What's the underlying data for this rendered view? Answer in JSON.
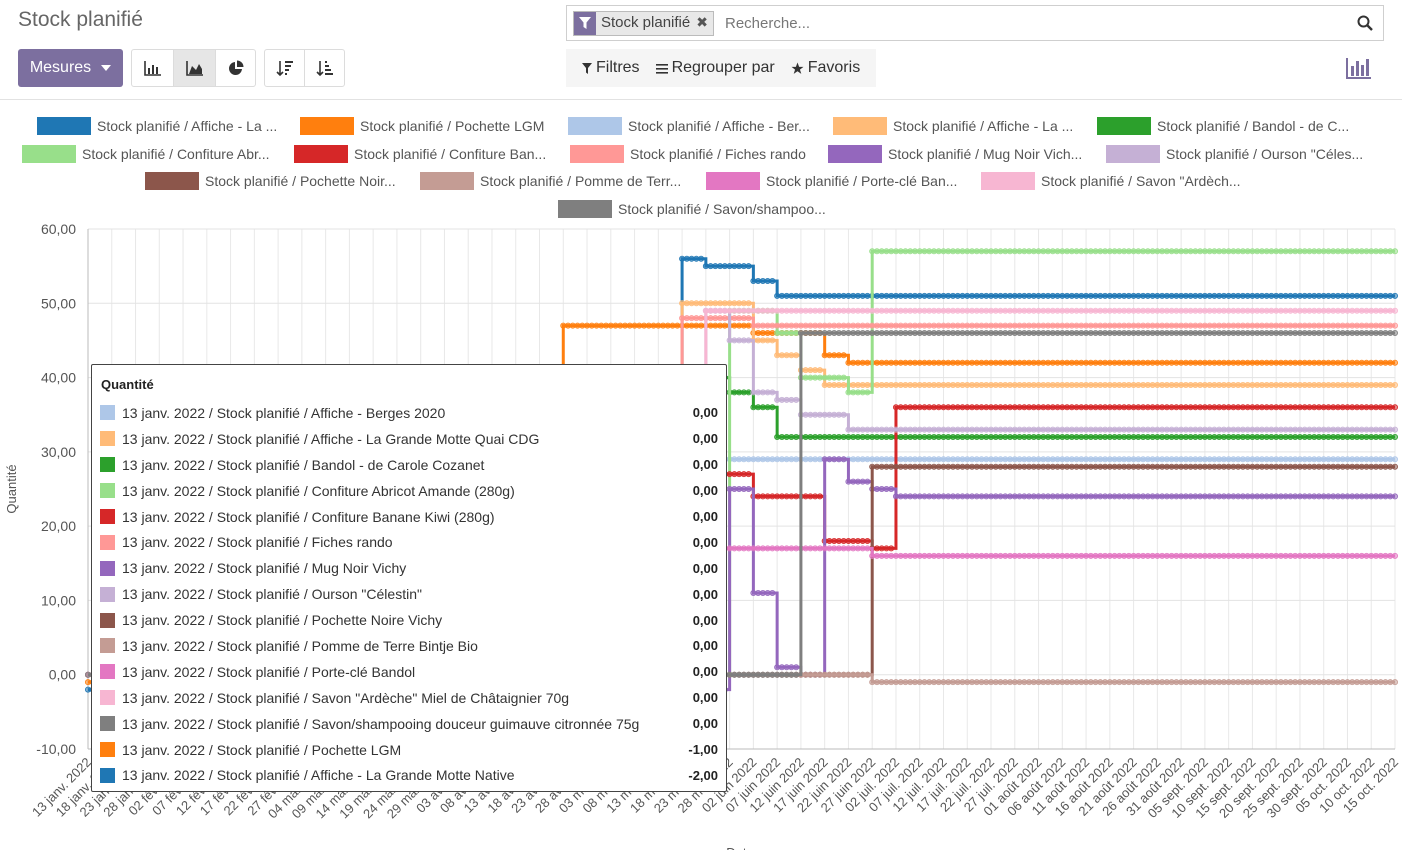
{
  "header": {
    "title": "Stock planifié",
    "measures_label": "Mesures"
  },
  "search": {
    "facet_label": "Stock planifié",
    "placeholder": "Recherche..."
  },
  "options": {
    "filters": "Filtres",
    "groupby": "Regrouper par",
    "favorites": "Favoris"
  },
  "colors": {
    "accent": "#7c6f9f"
  },
  "legend": [
    {
      "label": "Stock planifié / Affiche - La ...",
      "color": "#1f77b4"
    },
    {
      "label": "Stock planifié / Pochette LGM",
      "color": "#ff7f0e"
    },
    {
      "label": "Stock planifié / Affiche - Ber...",
      "color": "#aec7e8"
    },
    {
      "label": "Stock planifié / Affiche - La ...",
      "color": "#ffbb78"
    },
    {
      "label": "Stock planifié / Bandol - de C...",
      "color": "#2ca02c"
    },
    {
      "label": "Stock planifié / Confiture Abr...",
      "color": "#98df8a"
    },
    {
      "label": "Stock planifié / Confiture Ban...",
      "color": "#d62728"
    },
    {
      "label": "Stock planifié / Fiches rando",
      "color": "#ff9896"
    },
    {
      "label": "Stock planifié / Mug Noir Vich...",
      "color": "#9467bd"
    },
    {
      "label": "Stock planifié / Ourson \"Céles...",
      "color": "#c5b0d5"
    },
    {
      "label": "Stock planifié / Pochette Noir...",
      "color": "#8c564b"
    },
    {
      "label": "Stock planifié / Pomme de Terr...",
      "color": "#c49c94"
    },
    {
      "label": "Stock planifié / Porte-clé Ban...",
      "color": "#e377c2"
    },
    {
      "label": "Stock planifié / Savon \"Ardèch...",
      "color": "#f7b6d2"
    },
    {
      "label": "Stock planifié / Savon/shampoo...",
      "color": "#7f7f7f"
    }
  ],
  "tooltip": {
    "title": "Quantité",
    "rows": [
      {
        "label": "13 janv. 2022 / Stock planifié / Affiche - Berges 2020",
        "value": "0,00",
        "color": "#aec7e8"
      },
      {
        "label": "13 janv. 2022 / Stock planifié / Affiche - La Grande Motte Quai CDG",
        "value": "0,00",
        "color": "#ffbb78"
      },
      {
        "label": "13 janv. 2022 / Stock planifié / Bandol - de Carole Cozanet",
        "value": "0,00",
        "color": "#2ca02c"
      },
      {
        "label": "13 janv. 2022 / Stock planifié / Confiture Abricot Amande (280g)",
        "value": "0,00",
        "color": "#98df8a"
      },
      {
        "label": "13 janv. 2022 / Stock planifié / Confiture Banane Kiwi (280g)",
        "value": "0,00",
        "color": "#d62728"
      },
      {
        "label": "13 janv. 2022 / Stock planifié / Fiches rando",
        "value": "0,00",
        "color": "#ff9896"
      },
      {
        "label": "13 janv. 2022 / Stock planifié / Mug Noir Vichy",
        "value": "0,00",
        "color": "#9467bd"
      },
      {
        "label": "13 janv. 2022 / Stock planifié / Ourson \"Célestin\"",
        "value": "0,00",
        "color": "#c5b0d5"
      },
      {
        "label": "13 janv. 2022 / Stock planifié / Pochette Noire Vichy",
        "value": "0,00",
        "color": "#8c564b"
      },
      {
        "label": "13 janv. 2022 / Stock planifié / Pomme de Terre Bintje Bio",
        "value": "0,00",
        "color": "#c49c94"
      },
      {
        "label": "13 janv. 2022 / Stock planifié / Porte-clé Bandol",
        "value": "0,00",
        "color": "#e377c2"
      },
      {
        "label": "13 janv. 2022 / Stock planifié / Savon \"Ardèche\" Miel de Châtaignier 70g",
        "value": "0,00",
        "color": "#f7b6d2"
      },
      {
        "label": "13 janv. 2022 / Stock planifié / Savon/shampooing douceur guimauve citronnée 75g",
        "value": "0,00",
        "color": "#7f7f7f"
      },
      {
        "label": "13 janv. 2022 / Stock planifié / Pochette LGM",
        "value": "-1,00",
        "color": "#ff7f0e"
      },
      {
        "label": "13 janv. 2022 / Stock planifié / Affiche - La Grande Motte Native",
        "value": "-2,00",
        "color": "#1f77b4"
      }
    ]
  },
  "chart_data": {
    "type": "line",
    "ylabel": "Quantité",
    "xlabel": "Date",
    "ylim": [
      -10,
      60
    ],
    "yticks": [
      "60,00",
      "50,00",
      "40,00",
      "30,00",
      "20,00",
      "10,00",
      "0,00",
      "-10,00"
    ],
    "x": [
      "13 janv. 2022",
      "18 janv. 2022",
      "23 janv. 2022",
      "28 janv. 2022",
      "02 févr. 2022",
      "07 févr. 2022",
      "12 févr. 2022",
      "17 févr. 2022",
      "22 févr. 2022",
      "27 févr. 2022",
      "04 mars 2022",
      "09 mars 2022",
      "14 mars 2022",
      "19 mars 2022",
      "24 mars 2022",
      "29 mars 2022",
      "03 avr. 2022",
      "08 avr. 2022",
      "13 avr. 2022",
      "18 avr. 2022",
      "23 avr. 2022",
      "28 avr. 2022",
      "03 mai 2022",
      "08 mai 2022",
      "13 mai 2022",
      "18 mai 2022",
      "23 mai 2022",
      "28 mai 2022",
      "02 juin 2022",
      "07 juin 2022",
      "12 juin 2022",
      "17 juin 2022",
      "22 juin 2022",
      "27 juin 2022",
      "02 juil. 2022",
      "07 juil. 2022",
      "12 juil. 2022",
      "17 juil. 2022",
      "22 juil. 2022",
      "27 juil. 2022",
      "01 août 2022",
      "06 août 2022",
      "11 août 2022",
      "16 août 2022",
      "21 août 2022",
      "26 août 2022",
      "31 août 2022",
      "05 sept. 2022",
      "10 sept. 2022",
      "15 sept. 2022",
      "20 sept. 2022",
      "25 sept. 2022",
      "30 sept. 2022",
      "05 oct. 2022",
      "10 oct. 2022",
      "15 oct. 2022"
    ],
    "series": [
      {
        "name": "Stock planifié / Affiche - La ...",
        "color": "#1f77b4",
        "values": [
          -2,
          -2,
          -2,
          -2,
          -2,
          -2,
          -2,
          -2,
          -2,
          -2,
          -2,
          -2,
          -2,
          -2,
          -2,
          -2,
          -2,
          -2,
          -2,
          -2,
          -2,
          -2,
          -2,
          -2,
          -2,
          56,
          55,
          55,
          53,
          51,
          51,
          51,
          51,
          51,
          51,
          51,
          51,
          51,
          51,
          51,
          51,
          51,
          51,
          51,
          51,
          51,
          51,
          51,
          51,
          51,
          51,
          51,
          51,
          51,
          51,
          51
        ]
      },
      {
        "name": "Stock planifié / Pochette LGM",
        "color": "#ff7f0e",
        "values": [
          -1,
          -1,
          -1,
          -1,
          -1,
          -1,
          -1,
          -1,
          -1,
          -1,
          -1,
          -1,
          -1,
          -1,
          -1,
          -1,
          -1,
          -1,
          -1,
          -1,
          47,
          47,
          47,
          47,
          47,
          47,
          47,
          47,
          46,
          46,
          46,
          43,
          42,
          42,
          42,
          42,
          42,
          42,
          42,
          42,
          42,
          42,
          42,
          42,
          42,
          42,
          42,
          42,
          42,
          42,
          42,
          42,
          42,
          42,
          42,
          42
        ]
      },
      {
        "name": "Stock planifié / Affiche - Ber...",
        "color": "#aec7e8",
        "values": [
          0,
          0,
          0,
          0,
          0,
          0,
          0,
          0,
          0,
          0,
          0,
          0,
          0,
          0,
          0,
          0,
          0,
          0,
          0,
          0,
          8,
          8,
          8,
          6,
          6,
          29,
          29,
          29,
          29,
          29,
          29,
          29,
          29,
          29,
          29,
          29,
          29,
          29,
          29,
          29,
          29,
          29,
          29,
          29,
          29,
          29,
          29,
          29,
          29,
          29,
          29,
          29,
          29,
          29,
          29,
          29
        ]
      },
      {
        "name": "Stock planifié / Affiche - La ...",
        "color": "#ffbb78",
        "values": [
          0,
          0,
          0,
          0,
          0,
          0,
          0,
          0,
          0,
          0,
          0,
          0,
          0,
          0,
          0,
          0,
          0,
          0,
          0,
          0,
          15,
          15,
          15,
          15,
          15,
          50,
          50,
          50,
          45,
          43,
          41,
          39,
          39,
          39,
          39,
          39,
          39,
          39,
          39,
          39,
          39,
          39,
          39,
          39,
          39,
          39,
          39,
          39,
          39,
          39,
          39,
          39,
          39,
          39,
          39,
          39
        ]
      },
      {
        "name": "Stock planifié / Bandol - de C...",
        "color": "#2ca02c",
        "values": [
          0,
          0,
          0,
          0,
          0,
          0,
          0,
          0,
          0,
          0,
          0,
          0,
          0,
          0,
          0,
          0,
          0,
          0,
          0,
          0,
          0,
          0,
          0,
          0,
          0,
          40,
          40,
          38,
          36,
          32,
          32,
          32,
          32,
          32,
          32,
          32,
          32,
          32,
          32,
          32,
          32,
          32,
          32,
          32,
          32,
          32,
          32,
          32,
          32,
          32,
          32,
          32,
          32,
          32,
          32,
          32
        ]
      },
      {
        "name": "Stock planifié / Confiture Abr...",
        "color": "#98df8a",
        "values": [
          0,
          0,
          0,
          0,
          0,
          0,
          0,
          0,
          0,
          0,
          0,
          0,
          0,
          0,
          0,
          0,
          0,
          0,
          0,
          0,
          0,
          0,
          0,
          0,
          0,
          0,
          0,
          49,
          49,
          46,
          40,
          40,
          38,
          57,
          57,
          57,
          57,
          57,
          57,
          57,
          57,
          57,
          57,
          57,
          57,
          57,
          57,
          57,
          57,
          57,
          57,
          57,
          57,
          57,
          57,
          57
        ]
      },
      {
        "name": "Stock planifié / Confiture Ban...",
        "color": "#d62728",
        "values": [
          0,
          0,
          0,
          0,
          0,
          0,
          0,
          0,
          0,
          0,
          0,
          0,
          0,
          0,
          0,
          0,
          0,
          0,
          0,
          0,
          0,
          0,
          0,
          0,
          0,
          30,
          27,
          27,
          24,
          24,
          24,
          18,
          18,
          17,
          36,
          36,
          36,
          36,
          36,
          36,
          36,
          36,
          36,
          36,
          36,
          36,
          36,
          36,
          36,
          36,
          36,
          36,
          36,
          36,
          36,
          36
        ]
      },
      {
        "name": "Stock planifié / Fiches rando",
        "color": "#ff9896",
        "values": [
          0,
          0,
          0,
          0,
          0,
          0,
          0,
          0,
          0,
          0,
          0,
          0,
          0,
          0,
          0,
          0,
          0,
          0,
          0,
          0,
          0,
          0,
          13,
          13,
          13,
          48,
          48,
          48,
          47,
          47,
          47,
          47,
          47,
          47,
          47,
          47,
          47,
          47,
          47,
          47,
          47,
          47,
          47,
          47,
          47,
          47,
          47,
          47,
          47,
          47,
          47,
          47,
          47,
          47,
          47,
          47
        ]
      },
      {
        "name": "Stock planifié / Mug Noir Vich...",
        "color": "#9467bd",
        "values": [
          0,
          0,
          0,
          0,
          0,
          0,
          0,
          0,
          0,
          0,
          0,
          0,
          0,
          0,
          0,
          0,
          0,
          0,
          0,
          0,
          0,
          0,
          0,
          0,
          0,
          0,
          -2,
          25,
          11,
          1,
          0,
          29,
          26,
          25,
          24,
          24,
          24,
          24,
          24,
          24,
          24,
          24,
          24,
          24,
          24,
          24,
          24,
          24,
          24,
          24,
          24,
          24,
          24,
          24,
          24,
          24
        ]
      },
      {
        "name": "Stock planifié / Ourson \"Céles...",
        "color": "#c5b0d5",
        "values": [
          0,
          0,
          0,
          0,
          0,
          0,
          0,
          0,
          0,
          0,
          0,
          0,
          0,
          0,
          0,
          0,
          0,
          0,
          0,
          0,
          0,
          0,
          0,
          0,
          0,
          0,
          49,
          45,
          38,
          37,
          35,
          35,
          33,
          33,
          33,
          33,
          33,
          33,
          33,
          33,
          33,
          33,
          33,
          33,
          33,
          33,
          33,
          33,
          33,
          33,
          33,
          33,
          33,
          33,
          33,
          33
        ]
      },
      {
        "name": "Stock planifié / Pochette Noir...",
        "color": "#8c564b",
        "values": [
          0,
          0,
          0,
          0,
          0,
          0,
          0,
          0,
          0,
          0,
          0,
          0,
          0,
          0,
          0,
          0,
          0,
          0,
          0,
          0,
          0,
          0,
          0,
          0,
          0,
          0,
          0,
          0,
          0,
          0,
          0,
          0,
          0,
          28,
          28,
          28,
          28,
          28,
          28,
          28,
          28,
          28,
          28,
          28,
          28,
          28,
          28,
          28,
          28,
          28,
          28,
          28,
          28,
          28,
          28,
          28
        ]
      },
      {
        "name": "Stock planifié / Pomme de Terr...",
        "color": "#c49c94",
        "values": [
          0,
          0,
          0,
          0,
          0,
          0,
          0,
          0,
          0,
          0,
          0,
          0,
          0,
          0,
          0,
          0,
          0,
          0,
          0,
          0,
          0,
          0,
          0,
          0,
          0,
          0,
          0,
          0,
          0,
          0,
          0,
          0,
          0,
          -1,
          -1,
          -1,
          -1,
          -1,
          -1,
          -1,
          -1,
          -1,
          -1,
          -1,
          -1,
          -1,
          -1,
          -1,
          -1,
          -1,
          -1,
          -1,
          -1,
          -1,
          -1,
          -1
        ]
      },
      {
        "name": "Stock planifié / Porte-clé Ban...",
        "color": "#e377c2",
        "values": [
          0,
          0,
          0,
          0,
          0,
          0,
          0,
          0,
          0,
          0,
          0,
          0,
          0,
          0,
          0,
          0,
          0,
          0,
          0,
          0,
          0,
          0,
          0,
          0,
          0,
          0,
          17,
          17,
          17,
          17,
          17,
          17,
          17,
          16,
          16,
          16,
          16,
          16,
          16,
          16,
          16,
          16,
          16,
          16,
          16,
          16,
          16,
          16,
          16,
          16,
          16,
          16,
          16,
          16,
          16,
          16
        ]
      },
      {
        "name": "Stock planifié / Savon \"Ardèch...",
        "color": "#f7b6d2",
        "values": [
          0,
          0,
          0,
          0,
          0,
          0,
          0,
          0,
          0,
          0,
          0,
          0,
          0,
          0,
          0,
          0,
          0,
          0,
          0,
          0,
          0,
          0,
          0,
          0,
          0,
          0,
          49,
          49,
          49,
          49,
          49,
          49,
          49,
          49,
          49,
          49,
          49,
          49,
          49,
          49,
          49,
          49,
          49,
          49,
          49,
          49,
          49,
          49,
          49,
          49,
          49,
          49,
          49,
          49,
          49,
          49
        ]
      },
      {
        "name": "Stock planifié / Savon/shampoo...",
        "color": "#7f7f7f",
        "values": [
          0,
          0,
          0,
          0,
          0,
          0,
          0,
          0,
          0,
          0,
          0,
          0,
          0,
          0,
          0,
          0,
          0,
          0,
          0,
          0,
          0,
          0,
          0,
          0,
          0,
          0,
          0,
          0,
          0,
          0,
          46,
          46,
          46,
          46,
          46,
          46,
          46,
          46,
          46,
          46,
          46,
          46,
          46,
          46,
          46,
          46,
          46,
          46,
          46,
          46,
          46,
          46,
          46,
          46,
          46,
          46
        ]
      }
    ]
  }
}
